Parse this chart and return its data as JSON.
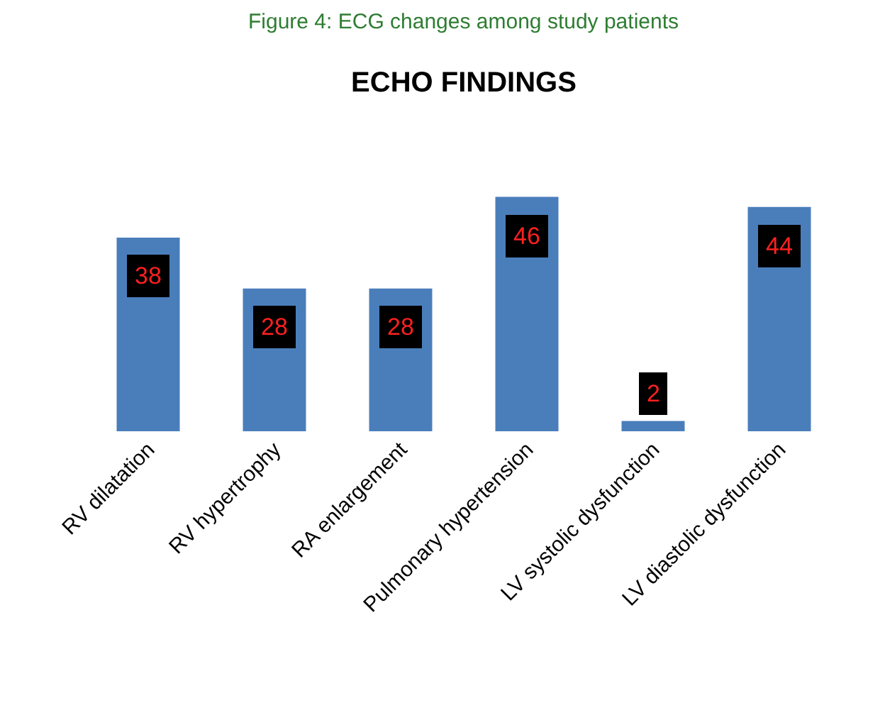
{
  "chart_data": {
    "type": "bar",
    "title": "ECHO FINDINGS",
    "annotations": [
      "Figure 4: ECG changes among study patients"
    ],
    "categories": [
      "RV dilatation",
      "RV hypertrophy",
      "RA enlargement",
      "Pulmonary hypertension",
      "LV systolic dysfunction",
      "LV diastolic dysfunction"
    ],
    "values": [
      38,
      28,
      28,
      46,
      2,
      44
    ],
    "color": "#4a7ebb",
    "data_labels": true,
    "grid": false,
    "legend": false
  }
}
